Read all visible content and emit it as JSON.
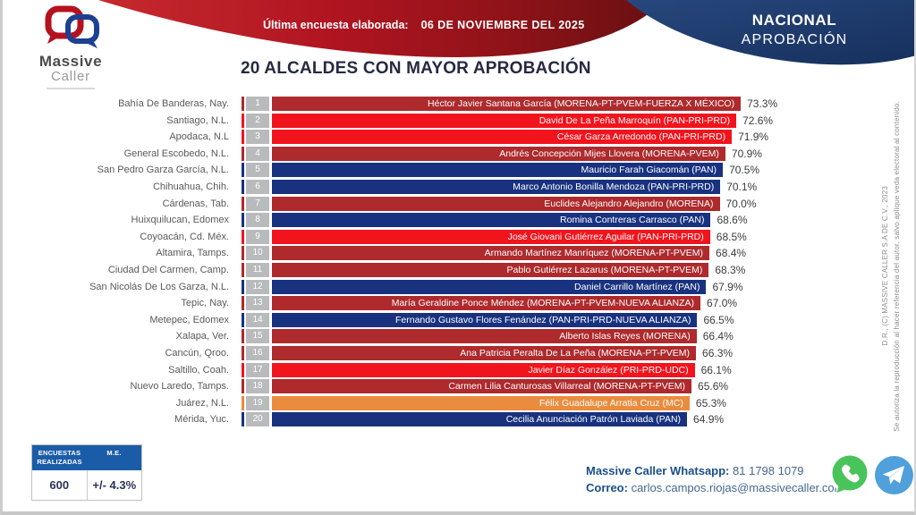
{
  "header": {
    "survey_label": "Última encuesta elaborada:",
    "survey_date": "06 DE NOVIEMBRE DEL 2025",
    "region_tab": {
      "line1": "NACIONAL",
      "line2": "APROBACIÓN"
    },
    "logo": {
      "line1": "Massive",
      "line2": "Caller"
    }
  },
  "title": "20 ALCALDES CON MAYOR APROBACIÓN",
  "chart_data": {
    "type": "bar",
    "orientation": "horizontal",
    "title": "20 ALCALDES CON MAYOR APROBACIÓN",
    "value_unit": "%",
    "xlim": [
      0,
      74
    ],
    "legend": "none",
    "grid": false,
    "palette": {
      "dark_red": "#AE2A2C",
      "bright_red": "#F2141D",
      "blue": "#18327F",
      "orange": "#EA8C3E"
    },
    "rows": [
      {
        "rank": "1",
        "city": "Bahía De Banderas, Nay.",
        "label": "Héctor Javier Santana García (MORENA-PT-PVEM-FUERZA X MÉXICO)",
        "value": 73.3,
        "value_label": "73.3%",
        "color": "dark_red"
      },
      {
        "rank": "2",
        "city": "Santiago, N.L.",
        "label": "David De La Peña Marroquín (PAN-PRI-PRD)",
        "value": 72.6,
        "value_label": "72.6%",
        "color": "bright_red"
      },
      {
        "rank": "3",
        "city": "Apodaca, N.L",
        "label": "César Garza Arredondo (PAN-PRI-PRD)",
        "value": 71.9,
        "value_label": "71.9%",
        "color": "bright_red"
      },
      {
        "rank": "4",
        "city": "General Escobedo, N.L.",
        "label": "Andrés Concepción Mijes Llovera (MORENA-PVEM)",
        "value": 70.9,
        "value_label": "70.9%",
        "color": "dark_red"
      },
      {
        "rank": "5",
        "city": "San Pedro Garza García, N.L.",
        "label": "Mauricio Farah Giacomán (PAN)",
        "value": 70.5,
        "value_label": "70.5%",
        "color": "blue"
      },
      {
        "rank": "6",
        "city": "Chihuahua, Chih.",
        "label": "Marco Antonio Bonilla Mendoza (PAN-PRI-PRD)",
        "value": 70.1,
        "value_label": "70.1%",
        "color": "blue"
      },
      {
        "rank": "7",
        "city": "Cárdenas, Tab.",
        "label": "Euclides Alejandro Alejandro (MORENA)",
        "value": 70.0,
        "value_label": "70.0%",
        "color": "dark_red"
      },
      {
        "rank": "8",
        "city": "Huixquilucan, Edomex",
        "label": "Romina Contreras Carrasco (PAN)",
        "value": 68.6,
        "value_label": "68.6%",
        "color": "blue"
      },
      {
        "rank": "9",
        "city": "Coyoacán, Cd. Méx.",
        "label": "José Giovani Gutiérrez Aguilar (PAN-PRI-PRD)",
        "value": 68.5,
        "value_label": "68.5%",
        "color": "bright_red"
      },
      {
        "rank": "10",
        "city": "Altamira, Tamps.",
        "label": "Armando Martínez Manríquez (MORENA-PT-PVEM)",
        "value": 68.4,
        "value_label": "68.4%",
        "color": "dark_red"
      },
      {
        "rank": "11",
        "city": "Ciudad Del Carmen, Camp.",
        "label": "Pablo Gutiérrez Lazarus (MORENA-PT-PVEM)",
        "value": 68.3,
        "value_label": "68.3%",
        "color": "dark_red"
      },
      {
        "rank": "12",
        "city": "San Nicolás De Los Garza, N.L.",
        "label": "Daniel Carrillo Martínez (PAN)",
        "value": 67.9,
        "value_label": "67.9%",
        "color": "blue"
      },
      {
        "rank": "13",
        "city": "Tepic, Nay.",
        "label": "María Geraldine Ponce Méndez (MORENA-PT-PVEM-NUEVA ALIANZA)",
        "value": 67.0,
        "value_label": "67.0%",
        "color": "dark_red"
      },
      {
        "rank": "14",
        "city": "Metepec, Edomex",
        "label": "Fernando Gustavo Flores Fenández (PAN-PRI-PRD-NUEVA ALIANZA)",
        "value": 66.5,
        "value_label": "66.5%",
        "color": "blue"
      },
      {
        "rank": "15",
        "city": "Xalapa, Ver.",
        "label": "Alberto Islas Reyes (MORENA)",
        "value": 66.4,
        "value_label": "66.4%",
        "color": "dark_red"
      },
      {
        "rank": "16",
        "city": "Cancún, Qroo.",
        "label": "Ana Patricia Peralta De La Peña (MORENA-PT-PVEM)",
        "value": 66.3,
        "value_label": "66.3%",
        "color": "dark_red"
      },
      {
        "rank": "17",
        "city": "Saltillo, Coah.",
        "label": "Javier Díaz González (PRI-PRD-UDC)",
        "value": 66.1,
        "value_label": "66.1%",
        "color": "bright_red"
      },
      {
        "rank": "18",
        "city": "Nuevo Laredo, Tamps.",
        "label": "Carmen Lilia Canturosas Villarreal (MORENA-PT-PVEM)",
        "value": 65.6,
        "value_label": "65.6%",
        "color": "dark_red"
      },
      {
        "rank": "19",
        "city": "Juárez, N.L.",
        "label": "Félix Guadalupe Arratia Cruz (MC)",
        "value": 65.3,
        "value_label": "65.3%",
        "color": "orange"
      },
      {
        "rank": "20",
        "city": "Mérida, Yuc.",
        "label": "Cecilia Anunciación Patrón Laviada (PAN)",
        "value": 64.9,
        "value_label": "64.9%",
        "color": "blue"
      }
    ]
  },
  "stats": {
    "col1_header": "ENCUESTAS REALIZADAS",
    "col2_header": "M.E.",
    "col1_value": "600",
    "col2_value": "+/- 4.3%"
  },
  "contact": {
    "whatsapp_label": "Massive Caller Whatsapp:",
    "whatsapp_number": "81 1798 1079",
    "email_label": "Correo:",
    "email": "carlos.campos.riojas@massivecaller.com"
  },
  "side_note": {
    "line1": "D.R., (C) MASSIVE CALLER S.A DE C.V., 2023",
    "line2": "Se autoriza la reproducción al hacer referencia del autor, salvo aplique veda electoral al contenido."
  }
}
